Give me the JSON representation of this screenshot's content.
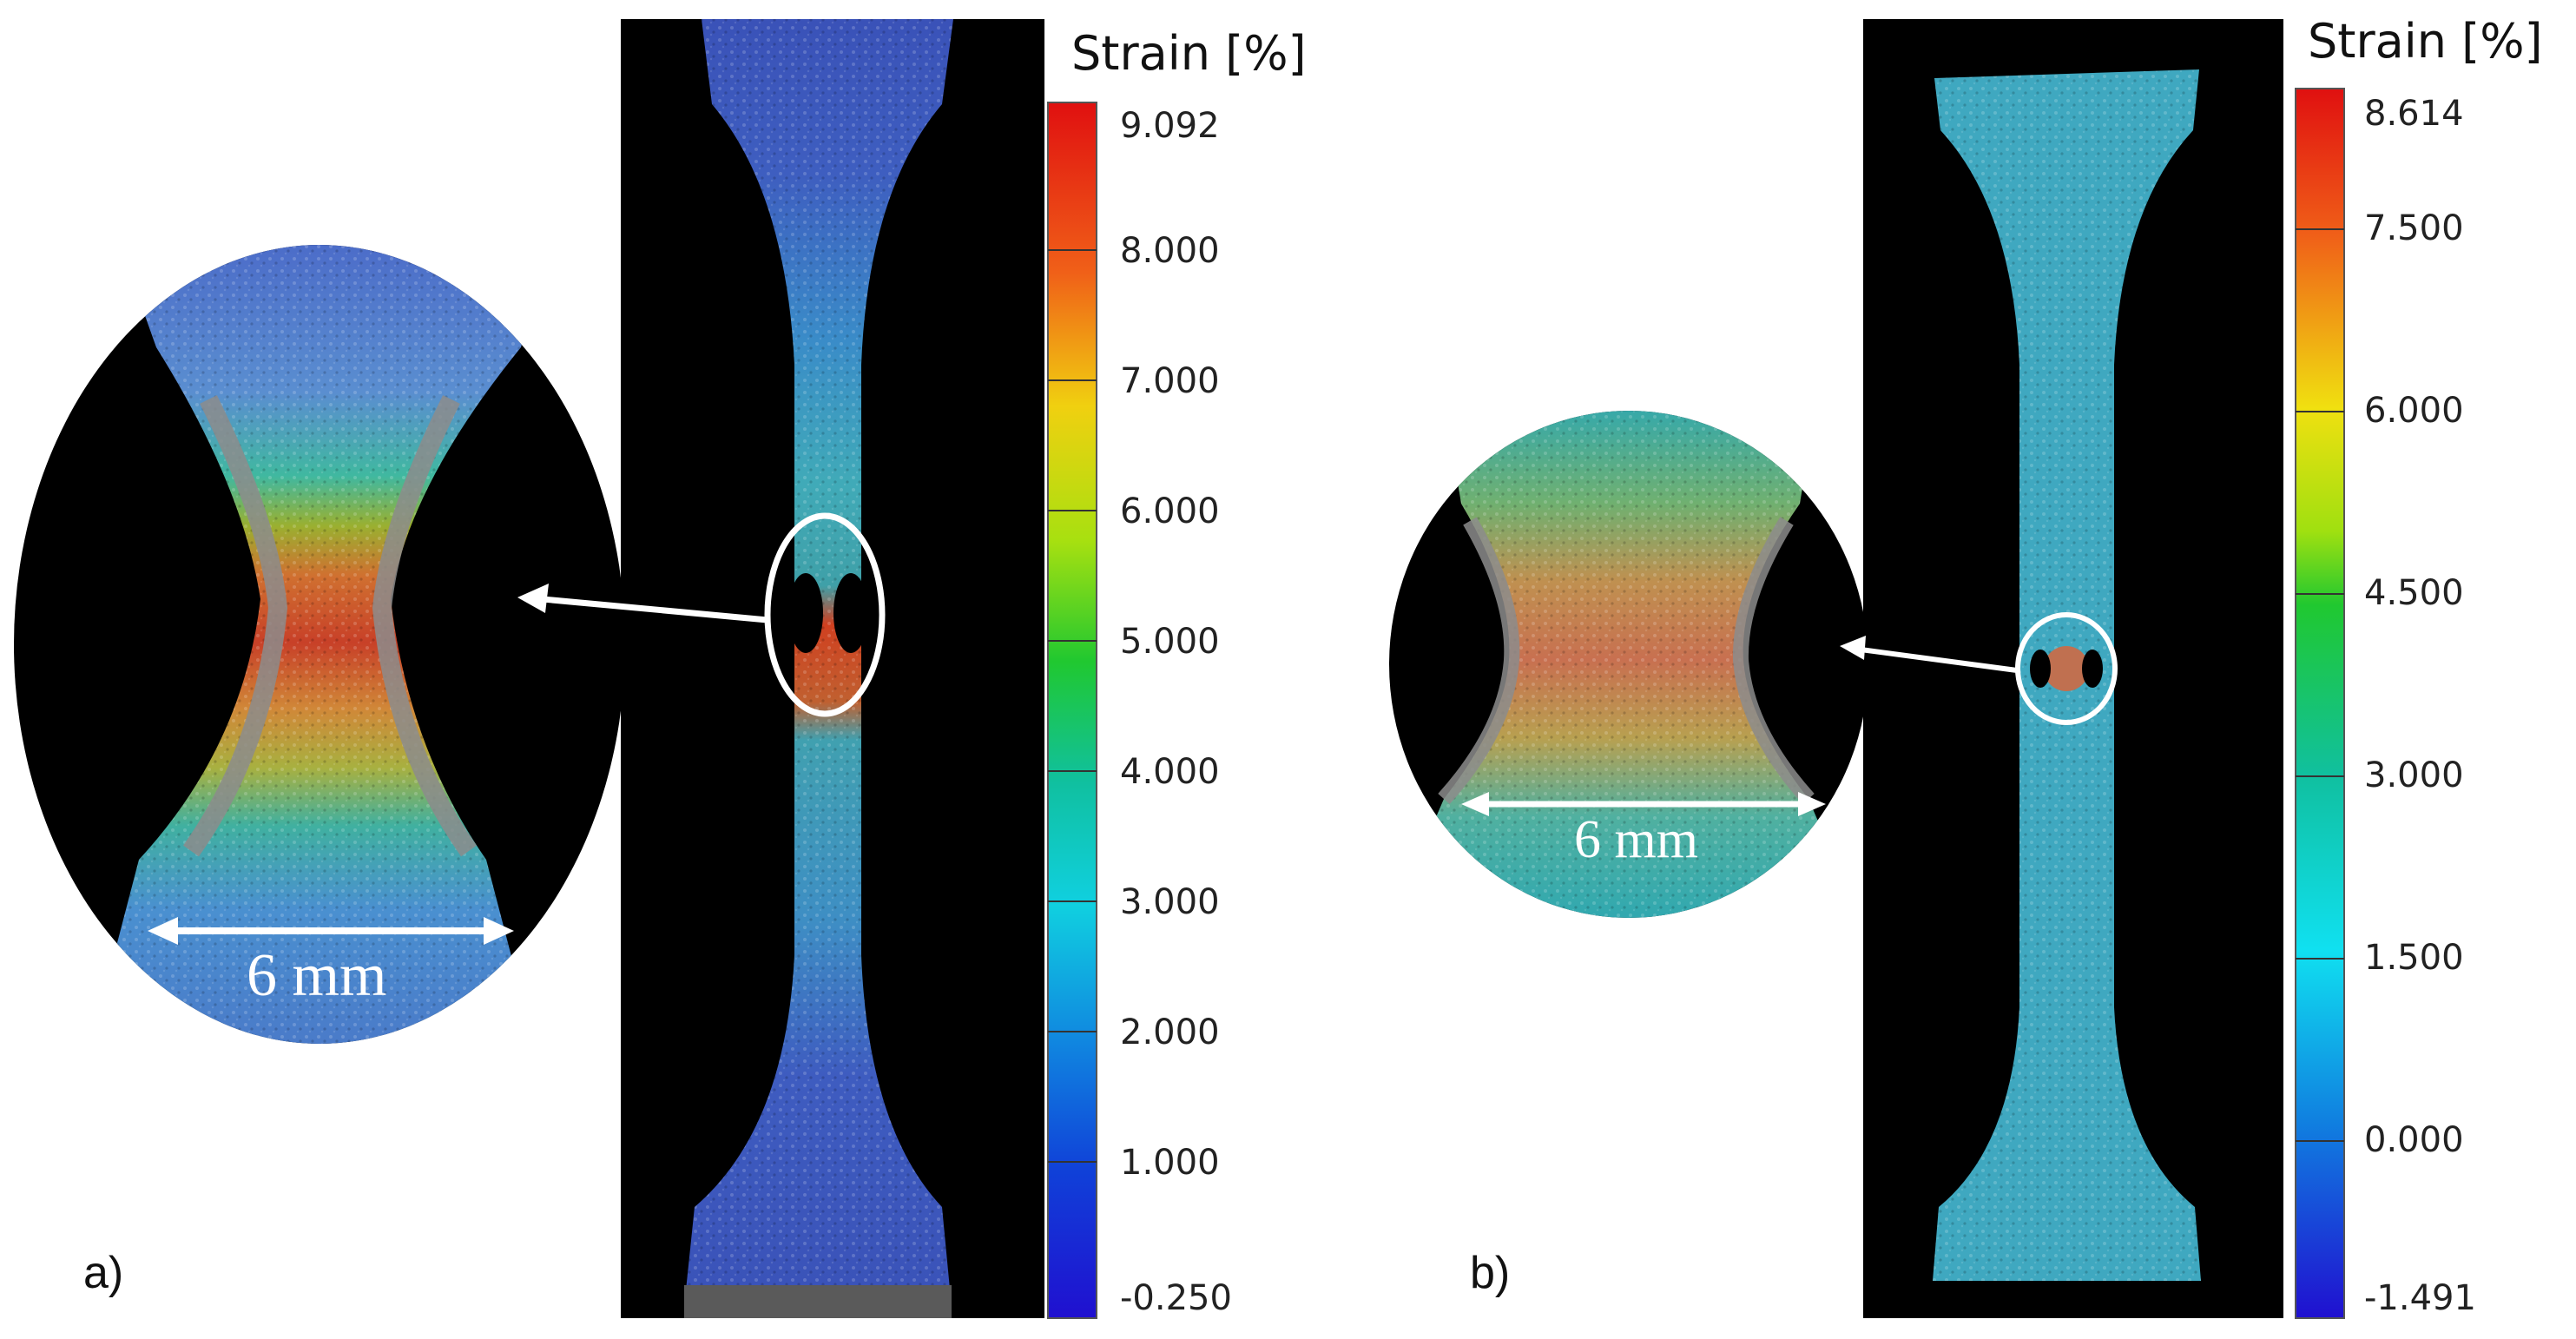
{
  "panels": [
    {
      "label": "a)",
      "colorbar": {
        "title": "Strain [%]",
        "ticks": [
          "9.092",
          "8.000",
          "7.000",
          "6.000",
          "5.000",
          "4.000",
          "3.000",
          "2.000",
          "1.000",
          "-0.250"
        ]
      },
      "scale_bar": "6 mm"
    },
    {
      "label": "b)",
      "colorbar": {
        "title": "Strain [%]",
        "ticks": [
          "8.614",
          "7.500",
          "6.000",
          "4.500",
          "3.000",
          "1.500",
          "0.000",
          "-1.491"
        ]
      },
      "scale_bar": "6 mm"
    }
  ],
  "colors": {
    "background": "#ffffff",
    "specimen_frame": "#000000",
    "low_strain": "#2233cc",
    "mid_strain": "#22cc44",
    "high_strain": "#dd2211",
    "annotation": "#ffffff"
  }
}
